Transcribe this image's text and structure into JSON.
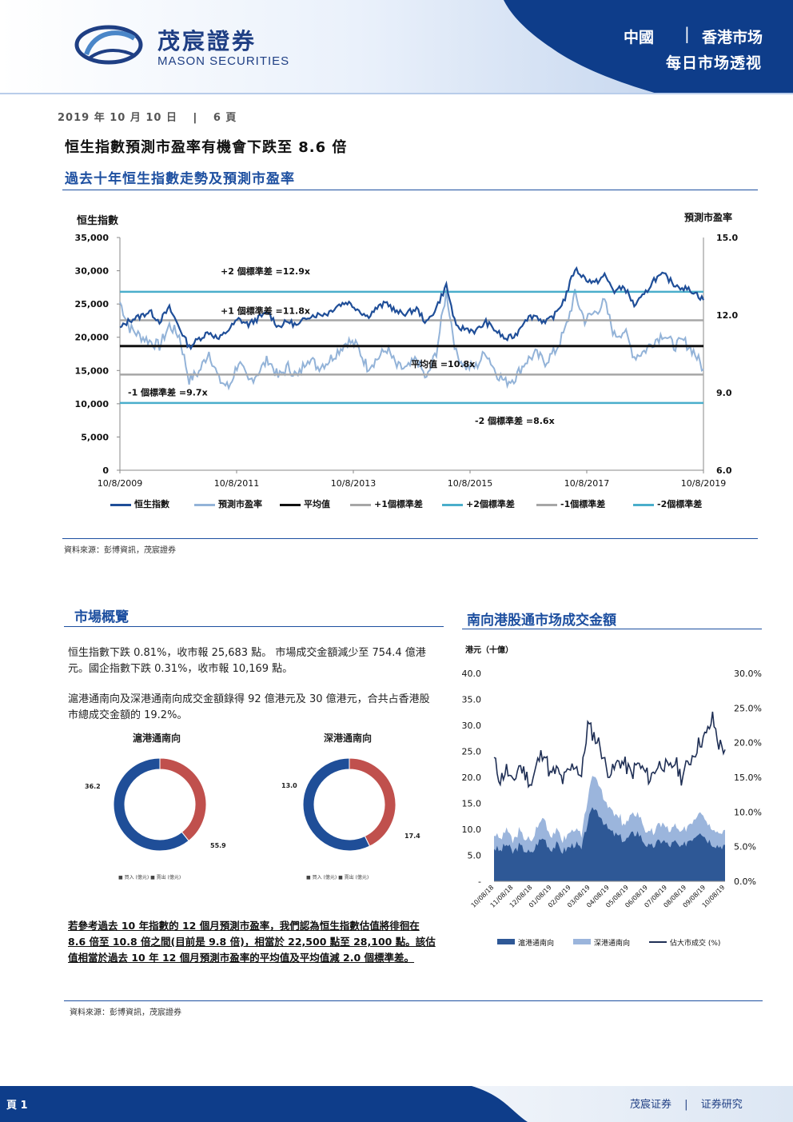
{
  "header": {
    "logo_cn": "茂宸證券",
    "logo_en": "MASON SECURITIES",
    "region": "中國",
    "market": "香港市场",
    "subtitle": "每日市场透视"
  },
  "date_line": "2019 年 10 月 10 日",
  "page_info": "6 頁",
  "main_title": "恒生指數預測市盈率有機會下跌至 8.6 倍",
  "chart1": {
    "title": "過去十年恒生指數走勢及預測市盈率",
    "source": "資料來源：彭博資訊，茂宸證券",
    "chart_data": {
      "type": "line",
      "left_axis_title": "恒生指數",
      "right_axis_title": "預測市盈率",
      "left_ticks": [
        "35,000",
        "30,000",
        "25,000",
        "20,000",
        "15,000",
        "10,000",
        "5,000",
        "0"
      ],
      "right_ticks": [
        "15.0",
        "12.0",
        "9.0",
        "6.0"
      ],
      "x_ticks": [
        "10/8/2009",
        "10/8/2011",
        "10/8/2013",
        "10/8/2015",
        "10/8/2017",
        "10/8/2019"
      ],
      "ylim_left": [
        0,
        35000
      ],
      "ylim_right": [
        6,
        15
      ],
      "series": [
        {
          "name": "恒生指數",
          "color": "#1f4e98",
          "values": [
            21300,
            22600,
            23100,
            23900,
            22400,
            24400,
            21500,
            18500,
            19800,
            20800,
            19700,
            21200,
            22700,
            21900,
            22900,
            23700,
            21600,
            22400,
            21700,
            23200,
            23400,
            23600,
            24800,
            25300,
            24300,
            23100,
            24400,
            25200,
            23700,
            23600,
            24300,
            22100,
            24500,
            27800,
            21400,
            21300,
            20900,
            22300,
            21000,
            19700,
            20300,
            22800,
            23300,
            22100,
            23400,
            25900,
            30300,
            28900,
            28100,
            29300,
            26900,
            27600,
            24800,
            26300,
            28700,
            29400,
            28000,
            27400,
            26900,
            25600
          ]
        },
        {
          "name": "預測市盈率",
          "values": [
            12.5,
            11.5,
            11.2,
            11.0,
            10.8,
            11.6,
            11.2,
            9.5,
            9.8,
            10.6,
            9.5,
            9.2,
            10.2,
            9.4,
            9.8,
            10.3,
            9.6,
            10.0,
            9.6,
            10.4,
            10.0,
            10.2,
            10.6,
            11.0,
            10.8,
            10.0,
            10.3,
            10.7,
            10.0,
            9.9,
            10.3,
            9.5,
            10.6,
            12.9,
            10.5,
            10.0,
            10.0,
            10.6,
            9.8,
            9.4,
            9.6,
            10.2,
            10.5,
            10.2,
            10.6,
            11.4,
            12.8,
            11.8,
            12.1,
            12.5,
            11.2,
            11.4,
            10.4,
            10.6,
            11.0,
            11.3,
            10.8,
            11.0,
            10.6,
            9.9
          ]
        }
      ],
      "reference_lines": [
        {
          "name": "平均值",
          "value": 10.8,
          "color": "#111111",
          "label": "平均值 =10.8x"
        },
        {
          "name": "+1個標準差",
          "value": 11.8,
          "color": "#a6a6a6",
          "label": "+1 個標準差 =11.8x"
        },
        {
          "name": "+2個標準差",
          "value": 12.9,
          "color": "#4aaecb",
          "label": "+2 個標準差 =12.9x"
        },
        {
          "name": "-1個標準差",
          "value": 9.7,
          "color": "#a6a6a6",
          "label": "-1 個標準差 =9.7x"
        },
        {
          "name": "-2個標準差",
          "value": 8.6,
          "color": "#4aaecb",
          "label": "-2 個標準差 =8.6x"
        }
      ],
      "legend": [
        "恒生指數",
        "預測市盈率",
        "平均值",
        "+1個標準差",
        "+2個標準差",
        "-1個標準差",
        "-2個標準差"
      ]
    }
  },
  "overview": {
    "title": "市場概覽",
    "para1": "恒生指數下跌 0.81%，收市報 25,683 點。 市場成交金額減少至 754.4 億港元。國企指數下跌 0.31%，收市報 10,169 點。",
    "para2": "滬港通南向及深港通南向成交金額錄得 92 億港元及 30 億港元，合共占香港股市總成交金額的 19.2%。",
    "donut_left_title": "滬港通南向",
    "donut_right_title": "深港通南向",
    "donut_left_values": {
      "buy": 55.9,
      "sell": 36.2
    },
    "donut_right_values": {
      "buy": 17.4,
      "sell": 13.0
    },
    "donut_left_label_sell": "36.2",
    "donut_left_label_buy": "55.9",
    "donut_right_label_sell": "13.0",
    "donut_right_label_buy": "17.4",
    "donut_legend": "■ 買入 (億元)  ■ 賣出 (億元)",
    "conclusion": "若參考過去 10 年指數的 12 個月預測市盈率，我們認為恒生指數估值將徘徊在 8.6 倍至 10.8 倍之間(目前是 9.8 倍)，相當於 22,500 點至 28,100 點。該估值相當於過去 10 年 12 個月預測市盈率的平均值及平均值減 2.0 個標準差。",
    "source": "資料來源：彭博資訊，茂宸證券"
  },
  "chart2": {
    "title": "南向港股通市场成交金額",
    "chart_data": {
      "type": "area",
      "left_axis_title": "港元（十億）",
      "left_ticks": [
        "40.0",
        "35.0",
        "30.0",
        "25.0",
        "20.0",
        "15.0",
        "10.0",
        "5.0",
        "-"
      ],
      "right_ticks": [
        "30.0%",
        "25.0%",
        "20.0%",
        "15.0%",
        "10.0%",
        "5.0%",
        "0.0%"
      ],
      "x_ticks": [
        "10/08/18",
        "11/08/18",
        "12/08/18",
        "01/08/19",
        "02/08/19",
        "03/08/19",
        "04/08/19",
        "05/08/19",
        "06/08/19",
        "07/08/19",
        "08/08/19",
        "09/08/19",
        "10/08/19"
      ],
      "ylim_left": [
        0,
        40
      ],
      "ylim_right": [
        0,
        30
      ],
      "series": [
        {
          "name": "滬港通南向",
          "color": "#2e5896",
          "values": [
            6.5,
            5.8,
            7.2,
            5.5,
            6.8,
            6.0,
            5.2,
            7.5,
            8.4,
            6.2,
            7.0,
            5.8,
            6.5,
            7.3,
            6.0,
            11.5,
            14.2,
            12.8,
            10.4,
            9.2,
            8.6,
            7.8,
            8.9,
            9.5,
            7.6,
            6.4,
            7.2,
            8.0,
            6.8,
            7.5,
            6.2,
            7.8,
            8.6,
            9.9,
            8.2,
            7.4,
            6.8,
            7.0
          ]
        },
        {
          "name": "深港通南向",
          "color": "#9bb5dc",
          "values": [
            2.6,
            2.2,
            3.0,
            2.0,
            2.8,
            2.5,
            2.0,
            3.2,
            3.8,
            2.4,
            2.9,
            2.3,
            2.6,
            3.0,
            2.4,
            4.8,
            6.2,
            5.6,
            4.4,
            3.9,
            3.6,
            3.2,
            3.7,
            4.0,
            3.1,
            2.6,
            3.0,
            3.3,
            2.8,
            3.1,
            2.5,
            3.2,
            3.6,
            4.2,
            3.4,
            3.0,
            2.8,
            2.9
          ]
        },
        {
          "name": "佔大市成交 (%)",
          "color": "#1f2f55",
          "values": [
            17.5,
            14.6,
            16.2,
            13.8,
            16.8,
            15.5,
            14.0,
            17.2,
            19.0,
            15.2,
            16.0,
            14.5,
            15.8,
            17.0,
            15.1,
            22.6,
            21.0,
            19.6,
            16.2,
            15.8,
            17.4,
            16.8,
            15.4,
            16.9,
            15.9,
            14.8,
            16.5,
            17.1,
            15.9,
            17.3,
            15.0,
            16.8,
            18.5,
            20.2,
            21.0,
            23.5,
            19.8,
            19.0
          ]
        }
      ],
      "legend": [
        "滬港通南向",
        "深港通南向",
        "佔大市成交 (%)"
      ]
    }
  },
  "footer": {
    "page": "頁 1",
    "brand": "茂宸证券",
    "dept": "证券研究"
  }
}
